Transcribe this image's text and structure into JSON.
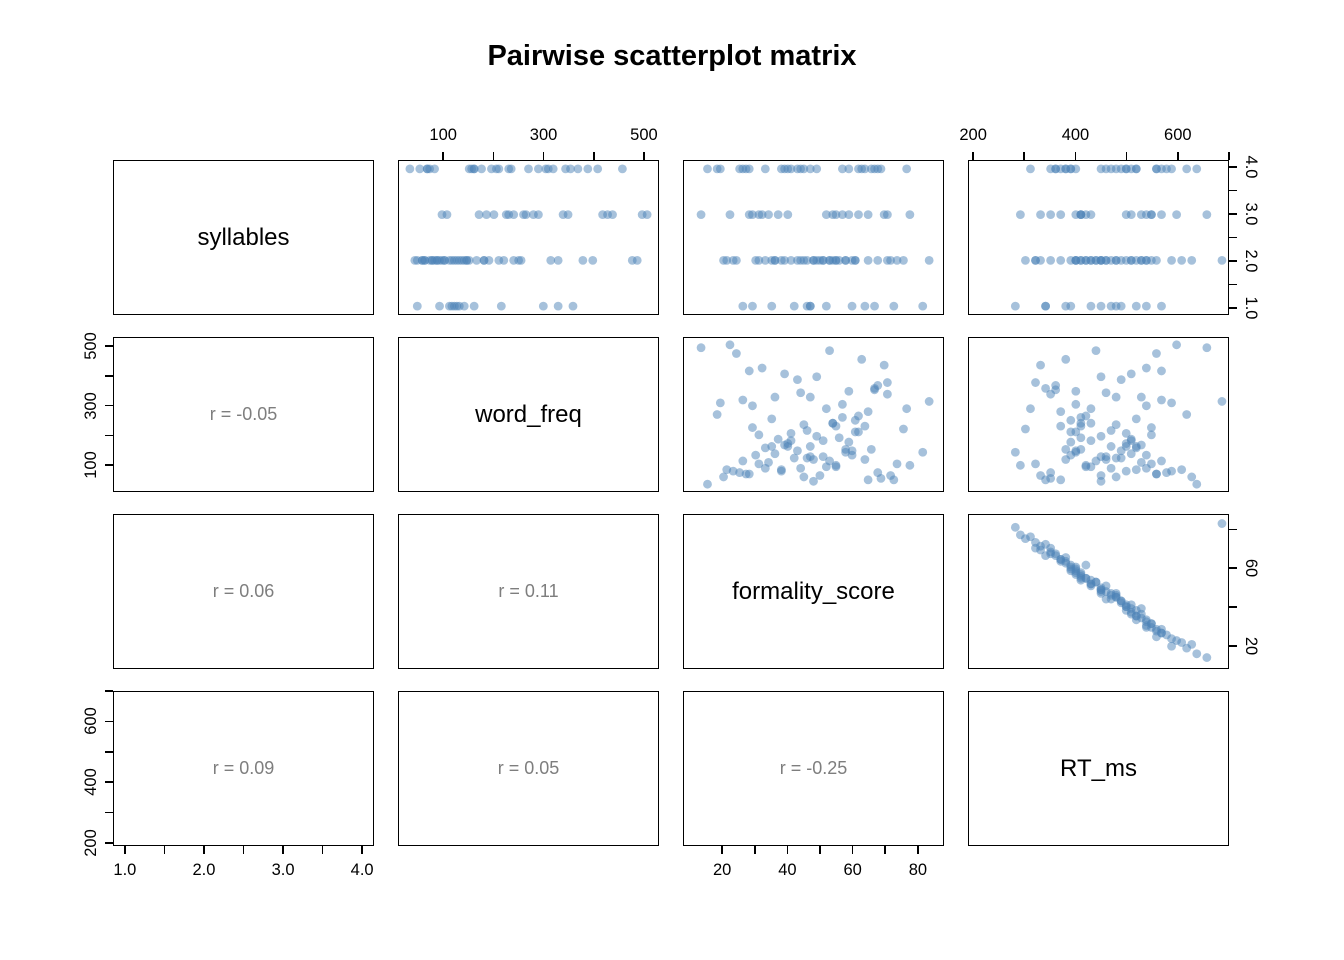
{
  "title": "Pairwise scatterplot matrix",
  "colors": {
    "point_fill": "#4e84b8",
    "point_alpha": 0.5,
    "corr_text": "#7e7e7e",
    "panel_border": "#000000",
    "background": "#ffffff"
  },
  "chart_data": {
    "type": "scatter",
    "subtype": "scatterplot_matrix",
    "title": "Pairwise scatterplot matrix",
    "variables": [
      "syllables",
      "word_freq",
      "formality_score",
      "RT_ms"
    ],
    "diag_labels": [
      "syllables",
      "word_freq",
      "formality_score",
      "RT_ms"
    ],
    "corr_labels": [
      [
        "",
        "",
        "",
        ""
      ],
      [
        "r = -0.05",
        "",
        "",
        ""
      ],
      [
        "r = 0.06",
        "r = 0.11",
        "",
        ""
      ],
      [
        "r = 0.09",
        "r = 0.05",
        "r = -0.25",
        ""
      ]
    ],
    "ranges": {
      "syllables": [
        0.85,
        4.15
      ],
      "word_freq": [
        10,
        530
      ],
      "formality_score": [
        8,
        88
      ],
      "RT_ms": [
        190,
        700
      ]
    },
    "axes": {
      "top": [
        {
          "col": 1,
          "var": "word_freq",
          "ticks": [
            100,
            200,
            300,
            400,
            500
          ],
          "labels": [
            "100",
            "",
            "300",
            "",
            "500"
          ]
        },
        {
          "col": 3,
          "var": "RT_ms",
          "ticks": [
            200,
            300,
            400,
            500,
            600,
            700
          ],
          "labels": [
            "200",
            "",
            "400",
            "",
            "600",
            ""
          ]
        }
      ],
      "right": [
        {
          "row": 0,
          "var": "syllables",
          "ticks": [
            1,
            1.5,
            2,
            2.5,
            3,
            3.5,
            4
          ],
          "labels": [
            "1.0",
            "",
            "2.0",
            "",
            "3.0",
            "",
            "4.0"
          ]
        },
        {
          "row": 2,
          "var": "formality_score",
          "ticks": [
            20,
            40,
            60,
            80
          ],
          "labels": [
            "20",
            "",
            "60",
            ""
          ]
        }
      ],
      "left": [
        {
          "row": 1,
          "var": "word_freq",
          "ticks": [
            100,
            200,
            300,
            400,
            500
          ],
          "labels": [
            "100",
            "",
            "300",
            "",
            "500"
          ]
        },
        {
          "row": 3,
          "var": "RT_ms",
          "ticks": [
            200,
            300,
            400,
            500,
            600,
            700
          ],
          "labels": [
            "200",
            "",
            "400",
            "",
            "600",
            ""
          ]
        }
      ],
      "bottom": [
        {
          "col": 0,
          "var": "syllables",
          "ticks": [
            1,
            1.5,
            2,
            2.5,
            3,
            3.5,
            4
          ],
          "labels": [
            "1.0",
            "",
            "2.0",
            "",
            "3.0",
            "",
            "4.0"
          ]
        },
        {
          "col": 2,
          "var": "formality_score",
          "ticks": [
            20,
            30,
            40,
            50,
            60,
            70,
            80
          ],
          "labels": [
            "20",
            "",
            "40",
            "",
            "60",
            "",
            "80"
          ]
        }
      ]
    },
    "n": 100,
    "observations": {
      "syllables": [
        2,
        4,
        2,
        3,
        1,
        2,
        4,
        2,
        3,
        2,
        4,
        1,
        2,
        2,
        3,
        4,
        2,
        1,
        4,
        3,
        2,
        2,
        4,
        3,
        2,
        1,
        4,
        2,
        2,
        3,
        4,
        2,
        1,
        3,
        4,
        2,
        2,
        4,
        3,
        1,
        2,
        4,
        2,
        2,
        3,
        4,
        1,
        2,
        4,
        2,
        3,
        2,
        4,
        2,
        1,
        3,
        2,
        4,
        2,
        4,
        2,
        3,
        1,
        4,
        2,
        2,
        4,
        3,
        2,
        1,
        4,
        2,
        3,
        2,
        4,
        1,
        2,
        4,
        2,
        3,
        2,
        4,
        2,
        1,
        3,
        4,
        2,
        2,
        4,
        3,
        1,
        2,
        4,
        3,
        2,
        4,
        2,
        3,
        4,
        2
      ],
      "word_freq": [
        55,
        210,
        130,
        340,
        90,
        480,
        150,
        75,
        260,
        115,
        310,
        45,
        180,
        95,
        420,
        230,
        60,
        160,
        290,
        510,
        140,
        85,
        370,
        200,
        110,
        330,
        70,
        250,
        165,
        440,
        30,
        190,
        120,
        280,
        155,
        400,
        100,
        65,
        350,
        215,
        135,
        460,
        80,
        240,
        170,
        50,
        300,
        125,
        390,
        220,
        105,
        145,
        270,
        40,
        360,
        185,
        90,
        320,
        60,
        235,
        150,
        430,
        115,
        205,
        75,
        490,
        160,
        95,
        255,
        130,
        345,
        70,
        225,
        180,
        410,
        140,
        55,
        305,
        120,
        265,
        85,
        195,
        380,
        110,
        240,
        160,
        45,
        330,
        175,
        500,
        125,
        210,
        65,
        290,
        145,
        355,
        100,
        230,
        80,
        315
      ],
      "formality_score": [
        45,
        62,
        30,
        71,
        52,
        24,
        66,
        38,
        57,
        48,
        19,
        73,
        41,
        55,
        28,
        64,
        50,
        35,
        77,
        22,
        58,
        44,
        68,
        31,
        53,
        47,
        25,
        61,
        39,
        70,
        15,
        56,
        42,
        65,
        33,
        49,
        74,
        27,
        59,
        46,
        36,
        63,
        21,
        54,
        40,
        69,
        29,
        51,
        43,
        76,
        34,
        60,
        18,
        48,
        67,
        37,
        55,
        26,
        72,
        45,
        58,
        32,
        64,
        41,
        23,
        53,
        47,
        78,
        35,
        60,
        44,
        68,
        29,
        51,
        39,
        82,
        20,
        57,
        46,
        62,
        33,
        49,
        71,
        26,
        54,
        40,
        65,
        36,
        59,
        13,
        47,
        61,
        28,
        52,
        43,
        67,
        31,
        55,
        38,
        84
      ],
      "RT_ms": [
        480,
        390,
        540,
        350,
        430,
        560,
        380,
        500,
        410,
        460,
        590,
        340,
        510,
        420,
        570,
        370,
        450,
        520,
        310,
        600,
        400,
        470,
        360,
        550,
        440,
        480,
        580,
        390,
        530,
        330,
        640,
        410,
        490,
        370,
        520,
        450,
        320,
        560,
        400,
        470,
        510,
        380,
        610,
        430,
        500,
        350,
        540,
        460,
        490,
        300,
        530,
        400,
        620,
        450,
        340,
        510,
        420,
        570,
        330,
        480,
        410,
        540,
        380,
        500,
        590,
        440,
        470,
        290,
        520,
        390,
        460,
        350,
        550,
        430,
        510,
        280,
        630,
        400,
        480,
        420,
        540,
        450,
        320,
        570,
        410,
        500,
        370,
        530,
        390,
        660,
        450,
        400,
        560,
        430,
        490,
        360,
        550,
        410,
        520,
        690
      ]
    }
  }
}
